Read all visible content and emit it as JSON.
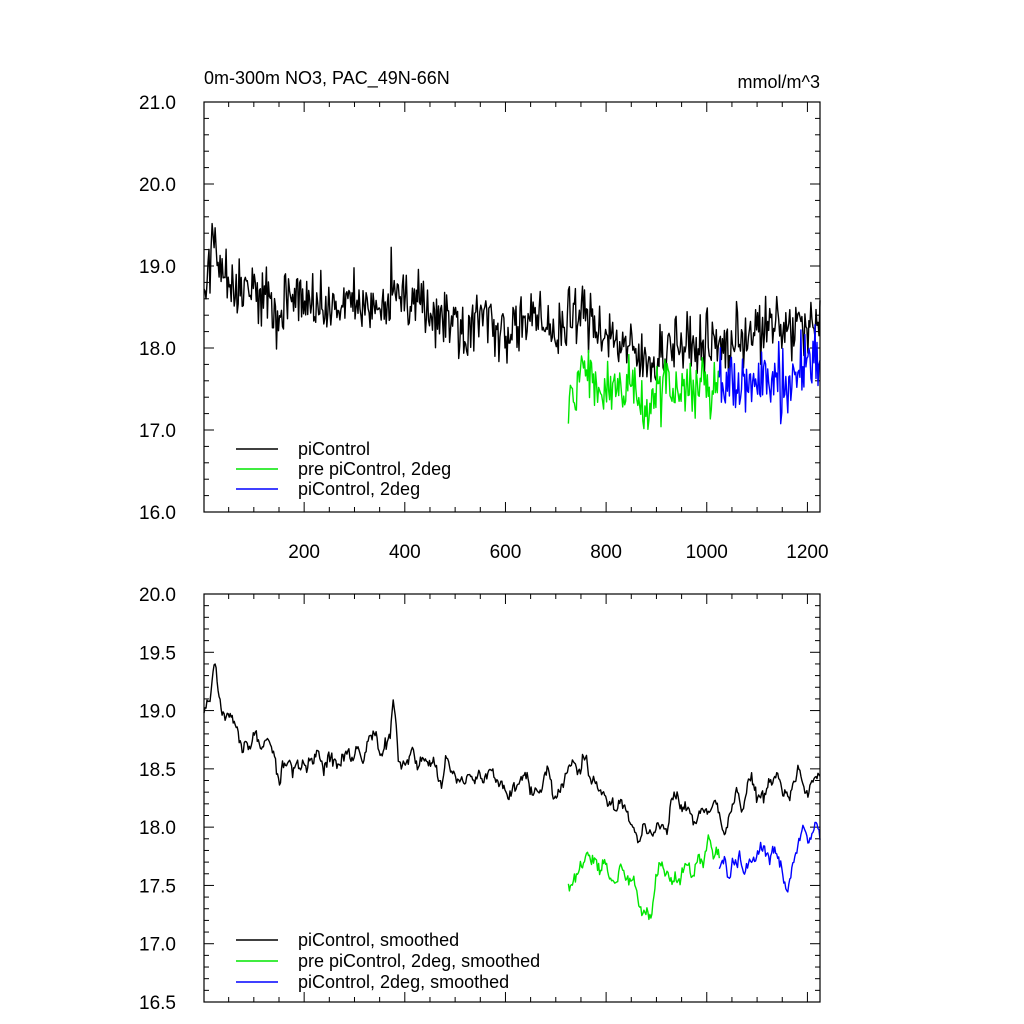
{
  "chart_data": [
    {
      "type": "line",
      "title": "0m-300m NO3, PAC_49N-66N",
      "units": "mmol/m^3",
      "xlim": [
        1,
        1225
      ],
      "ylim": [
        16.0,
        21.0
      ],
      "x_ticks": [
        200,
        400,
        600,
        800,
        1000,
        1200
      ],
      "y_ticks": [
        "16.0",
        "17.0",
        "18.0",
        "19.0",
        "20.0",
        "21.0"
      ],
      "legend_position": "bottom-left",
      "series": [
        {
          "name": "piControl",
          "color": "#000000",
          "x_start": 1,
          "x_end": 1225,
          "x": [
            1,
            10,
            20,
            30,
            45,
            60,
            80,
            100,
            120,
            140,
            150,
            160,
            180,
            200,
            220,
            240,
            260,
            280,
            300,
            320,
            340,
            360,
            380,
            390,
            400,
            420,
            440,
            460,
            480,
            500,
            520,
            540,
            560,
            580,
            600,
            620,
            640,
            660,
            680,
            700,
            720,
            740,
            760,
            780,
            800,
            820,
            840,
            860,
            880,
            900,
            920,
            940,
            960,
            980,
            1000,
            1020,
            1040,
            1060,
            1080,
            1100,
            1120,
            1140,
            1160,
            1180,
            1200,
            1225
          ],
          "y": [
            18.6,
            18.9,
            19.4,
            19.1,
            18.9,
            18.8,
            18.7,
            18.7,
            18.6,
            18.6,
            18.2,
            18.6,
            18.6,
            18.6,
            18.5,
            18.5,
            18.5,
            18.5,
            18.5,
            18.5,
            18.5,
            18.5,
            18.9,
            18.4,
            18.5,
            18.6,
            18.5,
            18.4,
            18.4,
            18.3,
            18.3,
            18.3,
            18.4,
            18.3,
            18.2,
            18.3,
            18.3,
            18.3,
            18.3,
            18.2,
            18.3,
            18.4,
            18.4,
            18.3,
            18.2,
            18.1,
            18.0,
            17.9,
            17.8,
            17.9,
            18.0,
            18.1,
            18.0,
            18.0,
            18.1,
            18.0,
            18.0,
            18.1,
            18.2,
            18.2,
            18.2,
            18.3,
            18.2,
            18.3,
            18.2,
            18.3
          ]
        },
        {
          "name": "pre piControl, 2deg",
          "color": "#00e600",
          "x_start": 725,
          "x_end": 1025,
          "x": [
            725,
            740,
            760,
            780,
            800,
            820,
            840,
            860,
            880,
            900,
            920,
            940,
            960,
            980,
            1000,
            1025
          ],
          "y": [
            17.3,
            17.5,
            17.6,
            17.6,
            17.5,
            17.5,
            17.5,
            17.4,
            17.2,
            17.5,
            17.6,
            17.4,
            17.5,
            17.6,
            17.6,
            17.6
          ]
        },
        {
          "name": "piControl, 2deg",
          "color": "#0000ff",
          "x_start": 1025,
          "x_end": 1225,
          "x": [
            1025,
            1040,
            1060,
            1080,
            1100,
            1120,
            1140,
            1160,
            1180,
            1200,
            1225
          ],
          "y": [
            17.6,
            17.5,
            17.6,
            17.6,
            17.7,
            17.6,
            17.7,
            17.4,
            17.8,
            17.8,
            17.9
          ]
        }
      ]
    },
    {
      "type": "line",
      "xlim": [
        1,
        1225
      ],
      "ylim": [
        16.5,
        20.0
      ],
      "x_ticks": [
        200,
        400,
        600,
        800,
        1000,
        1200
      ],
      "y_ticks": [
        "16.5",
        "17.0",
        "17.5",
        "18.0",
        "18.5",
        "19.0",
        "19.5",
        "20.0"
      ],
      "legend_position": "bottom-left",
      "series": [
        {
          "name": "piControl, smoothed",
          "color": "#000000",
          "x_start": 1,
          "x_end": 1225,
          "x": [
            1,
            10,
            20,
            30,
            45,
            60,
            80,
            100,
            120,
            140,
            150,
            160,
            180,
            200,
            220,
            240,
            260,
            280,
            300,
            320,
            340,
            360,
            380,
            390,
            400,
            420,
            440,
            460,
            480,
            500,
            520,
            540,
            560,
            580,
            600,
            620,
            640,
            660,
            680,
            700,
            720,
            740,
            760,
            780,
            800,
            820,
            840,
            860,
            880,
            900,
            920,
            940,
            960,
            980,
            1000,
            1020,
            1040,
            1060,
            1080,
            1100,
            1120,
            1140,
            1160,
            1180,
            1200,
            1225
          ],
          "y": [
            18.8,
            19.1,
            19.4,
            19.1,
            19.0,
            18.9,
            18.8,
            18.8,
            18.7,
            18.7,
            18.3,
            18.6,
            18.6,
            18.6,
            18.6,
            18.5,
            18.6,
            18.6,
            18.6,
            18.6,
            18.7,
            18.6,
            19.0,
            18.6,
            18.6,
            18.7,
            18.6,
            18.5,
            18.5,
            18.4,
            18.4,
            18.4,
            18.5,
            18.4,
            18.3,
            18.4,
            18.4,
            18.4,
            18.4,
            18.3,
            18.4,
            18.5,
            18.5,
            18.4,
            18.3,
            18.2,
            18.1,
            18.0,
            17.9,
            18.0,
            18.1,
            18.2,
            18.1,
            18.1,
            18.2,
            18.1,
            18.1,
            18.2,
            18.3,
            18.3,
            18.3,
            18.4,
            18.3,
            18.4,
            18.3,
            18.4
          ]
        },
        {
          "name": "pre piControl, 2deg, smoothed",
          "color": "#00e600",
          "x_start": 725,
          "x_end": 1025,
          "x": [
            725,
            740,
            760,
            780,
            800,
            820,
            840,
            860,
            880,
            900,
            920,
            940,
            960,
            980,
            1000,
            1025
          ],
          "y": [
            17.3,
            17.6,
            17.7,
            17.7,
            17.6,
            17.6,
            17.6,
            17.5,
            17.2,
            17.6,
            17.7,
            17.5,
            17.6,
            17.7,
            17.7,
            17.7
          ]
        },
        {
          "name": "piControl, 2deg, smoothed",
          "color": "#0000ff",
          "x_start": 1025,
          "x_end": 1225,
          "x": [
            1025,
            1040,
            1060,
            1080,
            1100,
            1120,
            1140,
            1160,
            1180,
            1200,
            1225
          ],
          "y": [
            17.7,
            17.6,
            17.7,
            17.7,
            17.8,
            17.7,
            17.8,
            17.5,
            17.9,
            17.9,
            18.0
          ]
        }
      ]
    }
  ]
}
